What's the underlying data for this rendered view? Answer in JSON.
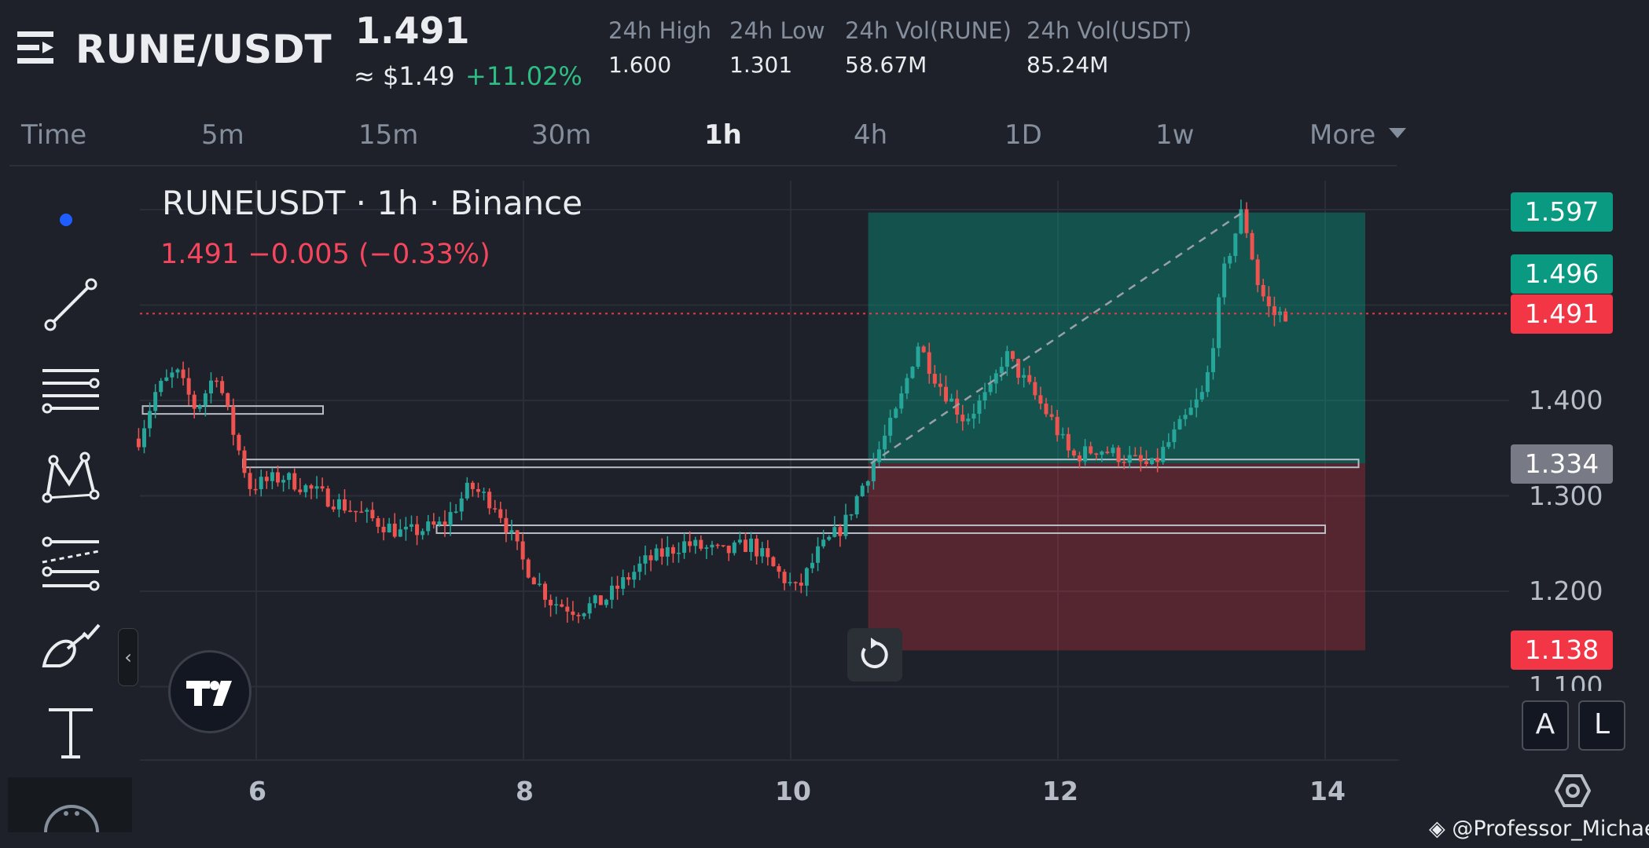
{
  "header": {
    "pair": "RUNE/USDT",
    "last_price": "1.491",
    "usd_price": "≈ $1.49",
    "change_pct": "+11.02%",
    "stats": [
      {
        "label": "24h High",
        "value": "1.600"
      },
      {
        "label": "24h Low",
        "value": "1.301"
      },
      {
        "label": "24h Vol(RUNE)",
        "value": "58.67M"
      },
      {
        "label": "24h Vol(USDT)",
        "value": "85.24M"
      }
    ]
  },
  "timeframes": {
    "items": [
      "Time",
      "5m",
      "15m",
      "30m",
      "1h",
      "4h",
      "1D",
      "1w",
      "More"
    ],
    "active": "1h"
  },
  "chart": {
    "title": "RUNEUSDT · 1h · Binance",
    "ohlc": "1.491  −0.005 (−0.33%)",
    "price_tags": [
      {
        "label": "1.597",
        "color": "#0a9981"
      },
      {
        "label": "1.496",
        "color": "#0a9981"
      },
      {
        "label": "1.491",
        "color": "#f23645"
      },
      {
        "label": "1.334",
        "color": "#787b86"
      },
      {
        "label": "1.138",
        "color": "#f23645"
      }
    ],
    "axis_labels": [
      "1.400",
      "1.300",
      "1.200",
      "1.100"
    ],
    "date_labels": [
      "6",
      "8",
      "10",
      "12",
      "14"
    ],
    "scale_buttons": {
      "auto": "A",
      "log": "L"
    }
  },
  "chart_data": {
    "type": "candlestick",
    "title": "RUNEUSDT · 1h · Binance",
    "xlabel": "",
    "ylabel": "",
    "x_ticks": [
      "6",
      "8",
      "10",
      "12",
      "14"
    ],
    "y_ticks": [
      1.1,
      1.2,
      1.3,
      1.4
    ],
    "ylim": [
      1.08,
      1.64
    ],
    "xlim": [
      5.1,
      14.6
    ],
    "colors": {
      "up": "#26a69a",
      "down": "#ef5350"
    },
    "grid": true,
    "close_path": [
      [
        5.12,
        1.36
      ],
      [
        5.25,
        1.41
      ],
      [
        5.4,
        1.43
      ],
      [
        5.55,
        1.39
      ],
      [
        5.7,
        1.43
      ],
      [
        5.8,
        1.38
      ],
      [
        5.95,
        1.31
      ],
      [
        6.2,
        1.32
      ],
      [
        6.5,
        1.3
      ],
      [
        6.8,
        1.28
      ],
      [
        7.1,
        1.26
      ],
      [
        7.4,
        1.27
      ],
      [
        7.6,
        1.31
      ],
      [
        7.8,
        1.29
      ],
      [
        8.0,
        1.23
      ],
      [
        8.2,
        1.19
      ],
      [
        8.4,
        1.18
      ],
      [
        8.6,
        1.19
      ],
      [
        8.9,
        1.23
      ],
      [
        9.2,
        1.25
      ],
      [
        9.5,
        1.24
      ],
      [
        9.7,
        1.25
      ],
      [
        9.9,
        1.22
      ],
      [
        10.05,
        1.2
      ],
      [
        10.2,
        1.24
      ],
      [
        10.4,
        1.27
      ],
      [
        10.6,
        1.33
      ],
      [
        10.8,
        1.39
      ],
      [
        10.95,
        1.46
      ],
      [
        11.1,
        1.42
      ],
      [
        11.3,
        1.38
      ],
      [
        11.5,
        1.41
      ],
      [
        11.6,
        1.45
      ],
      [
        11.8,
        1.41
      ],
      [
        11.95,
        1.38
      ],
      [
        12.1,
        1.34
      ],
      [
        12.3,
        1.35
      ],
      [
        12.5,
        1.34
      ],
      [
        12.7,
        1.33
      ],
      [
        12.85,
        1.36
      ],
      [
        13.0,
        1.39
      ],
      [
        13.1,
        1.41
      ],
      [
        13.25,
        1.54
      ],
      [
        13.38,
        1.6
      ],
      [
        13.5,
        1.52
      ],
      [
        13.6,
        1.49
      ],
      [
        13.72,
        1.491
      ]
    ],
    "zones": [
      {
        "from": [
          10.58,
          1.334
        ],
        "to": [
          14.3,
          1.597
        ],
        "kind": "profit"
      },
      {
        "from": [
          10.58,
          1.138
        ],
        "to": [
          14.3,
          1.334
        ],
        "kind": "stop"
      }
    ],
    "levels": [
      1.39,
      1.334,
      1.265
    ],
    "current_price": 1.491
  },
  "watermark": "@Professor_Michael"
}
